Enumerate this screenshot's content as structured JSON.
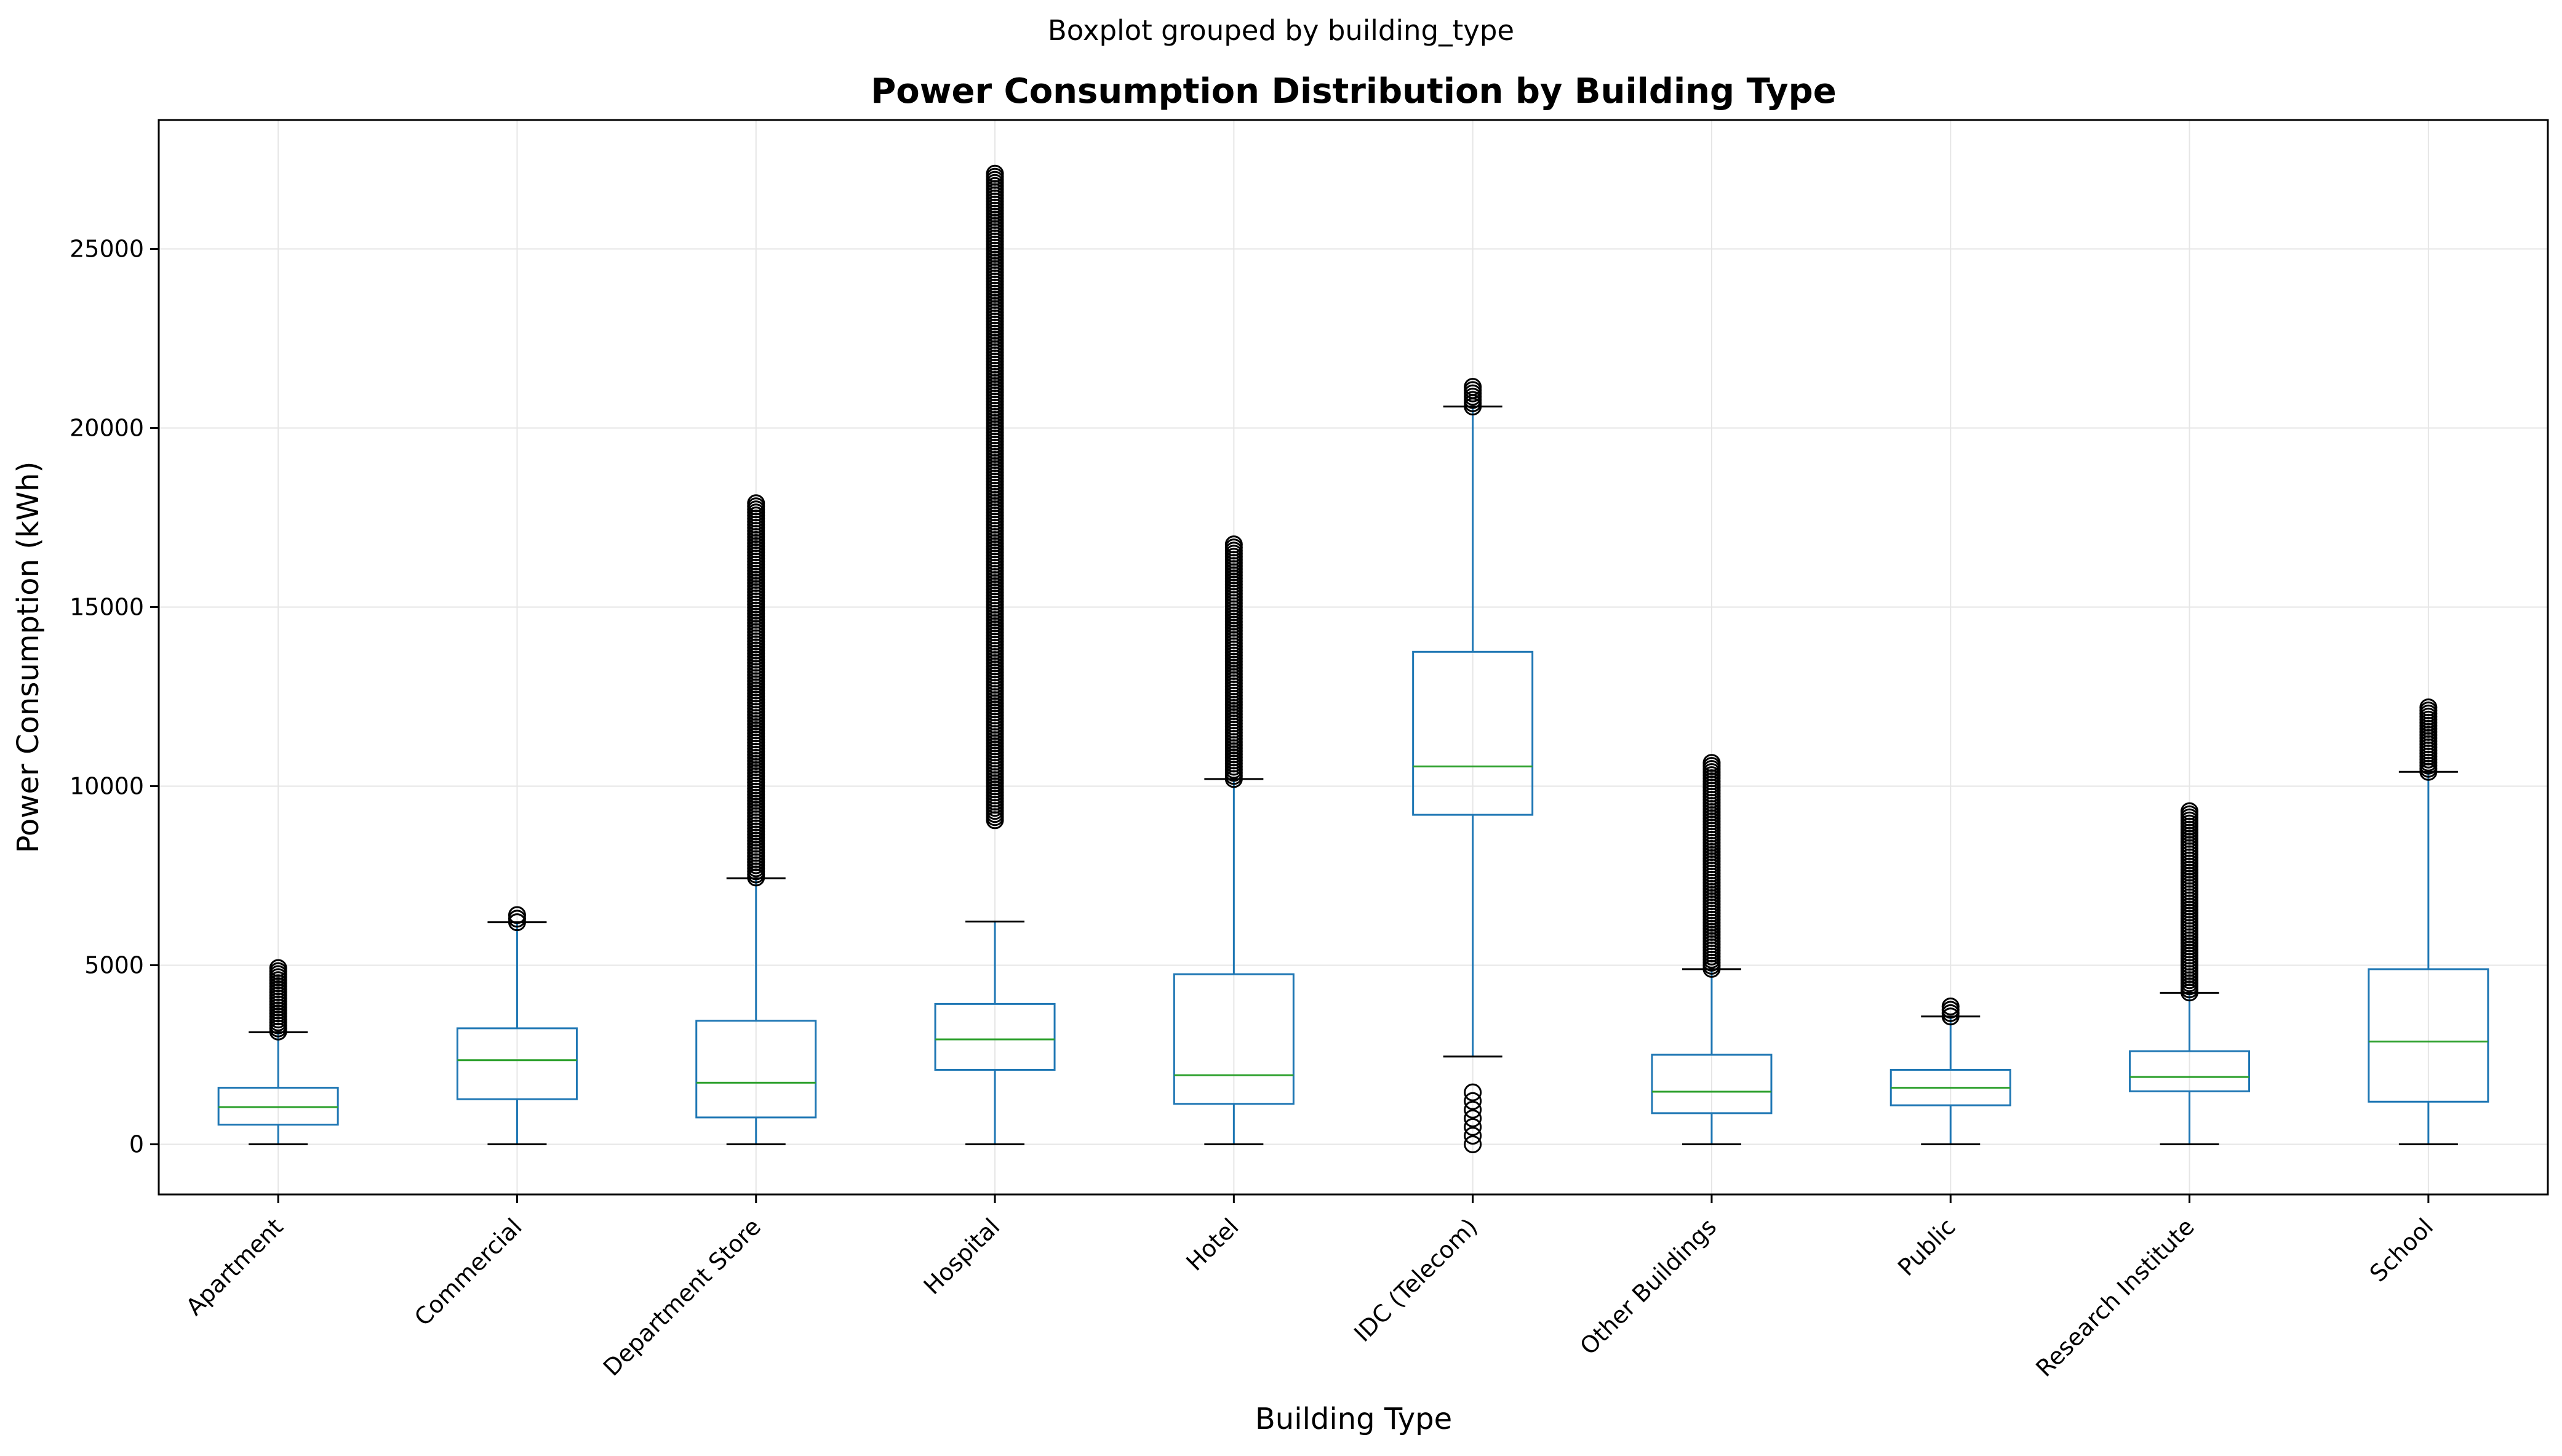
{
  "chart_data": {
    "type": "boxplot",
    "suptitle": "Boxplot grouped by building_type",
    "title": "Power Consumption Distribution by Building Type",
    "xlabel": "Building Type",
    "ylabel": "Power Consumption (kWh)",
    "ylim": [
      -1400,
      28600
    ],
    "yticks": [
      0,
      5000,
      10000,
      15000,
      20000,
      25000
    ],
    "grid": true,
    "colors": {
      "box": "#1f77b4",
      "median": "#2ca02c",
      "cap": "#000000",
      "flier": "#000000",
      "grid": "#e6e6e6"
    },
    "categories": [
      "Apartment",
      "Commercial",
      "Department Store",
      "Hospital",
      "Hotel",
      "IDC (Telecom)",
      "Other Buildings",
      "Public",
      "Research Institute",
      "School"
    ],
    "boxes": [
      {
        "min": 0,
        "q1": 550,
        "median": 1040,
        "q3": 1580,
        "max": 3130,
        "fliers_high": [
          3150,
          4920
        ],
        "fliers_low": []
      },
      {
        "min": 0,
        "q1": 1260,
        "median": 2350,
        "q3": 3240,
        "max": 6200,
        "fliers_high": [
          6200,
          6400
        ],
        "fliers_low": []
      },
      {
        "min": 0,
        "q1": 750,
        "median": 1720,
        "q3": 3450,
        "max": 7430,
        "fliers_high": [
          7450,
          17900
        ],
        "fliers_low": []
      },
      {
        "min": 0,
        "q1": 2080,
        "median": 2930,
        "q3": 3920,
        "max": 6220,
        "fliers_high": [
          9050,
          27100
        ],
        "fliers_low": []
      },
      {
        "min": 0,
        "q1": 1130,
        "median": 1930,
        "q3": 4750,
        "max": 10200,
        "fliers_high": [
          10200,
          16750
        ],
        "fliers_low": []
      },
      {
        "min": 2450,
        "q1": 9200,
        "median": 10550,
        "q3": 13750,
        "max": 20600,
        "fliers_high": [
          20600,
          21150
        ],
        "fliers_low": [
          0,
          1450
        ]
      },
      {
        "min": 0,
        "q1": 870,
        "median": 1470,
        "q3": 2500,
        "max": 4890,
        "fliers_high": [
          4900,
          10650
        ],
        "fliers_low": []
      },
      {
        "min": 0,
        "q1": 1090,
        "median": 1580,
        "q3": 2080,
        "max": 3570,
        "fliers_high": [
          3570,
          3850
        ],
        "fliers_low": []
      },
      {
        "min": 0,
        "q1": 1480,
        "median": 1880,
        "q3": 2600,
        "max": 4230,
        "fliers_high": [
          4240,
          9300
        ],
        "fliers_low": []
      },
      {
        "min": 0,
        "q1": 1190,
        "median": 2870,
        "q3": 4890,
        "max": 10400,
        "fliers_high": [
          10400,
          12200
        ],
        "fliers_low": []
      }
    ]
  }
}
